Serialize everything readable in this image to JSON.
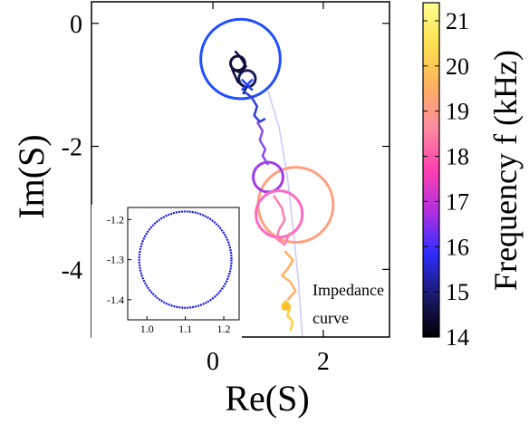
{
  "chart_data": [
    {
      "type": "line",
      "panel": "main",
      "xlabel": "Re(S)",
      "ylabel": "Im(S)",
      "xlim": [
        -2.2,
        3.2
      ],
      "ylim": [
        -5.1,
        0.35
      ],
      "xticks": [
        0,
        2
      ],
      "yticks": [
        0,
        -2,
        -4
      ],
      "xtick_labels": [
        "0",
        "2"
      ],
      "ytick_labels": [
        "0",
        "-2",
        "-4"
      ],
      "annotation": [
        "Impedance",
        "curve"
      ],
      "colorbar": {
        "label": "Frequency f (kHz)",
        "min": 14,
        "max": 21.4,
        "ticks": [
          14,
          15,
          16,
          17,
          18,
          19,
          20,
          21
        ],
        "colormap": [
          "#000000",
          "#1a1a6e",
          "#2d2dff",
          "#b030e0",
          "#ff40b0",
          "#ff8aa0",
          "#ffb060",
          "#ffe050",
          "#ffff90"
        ]
      },
      "impedance_curve": {
        "color": "#c8c8ff",
        "x": [
          1.0,
          1.2,
          1.35,
          1.45,
          1.55,
          1.62
        ],
        "y": [
          -1.1,
          -1.7,
          -2.5,
          -3.3,
          -4.2,
          -5.1
        ]
      },
      "circles": [
        {
          "cx": 0.5,
          "cy": -0.58,
          "r": 0.72,
          "color": "#1f4fff",
          "frequency": 15.4
        },
        {
          "cx": 1.5,
          "cy": -2.95,
          "r": 0.68,
          "color": "#ffa080",
          "frequency": 19.3
        },
        {
          "cx": 1.0,
          "cy": -2.5,
          "r": 0.27,
          "color": "#a03ce8",
          "frequency": 17.2
        },
        {
          "cx": 1.2,
          "cy": -3.1,
          "r": 0.42,
          "color": "#ff6ac0",
          "frequency": 18.2
        },
        {
          "cx": 0.45,
          "cy": -0.65,
          "r": 0.13,
          "color": "#0f0f3a",
          "frequency": 14.2
        },
        {
          "cx": 0.62,
          "cy": -0.9,
          "r": 0.15,
          "color": "#1a1a5a",
          "frequency": 14.6
        }
      ],
      "traces": [
        {
          "color": "#101040",
          "frequency": 14.3,
          "x": [
            0.4,
            0.5,
            0.6,
            0.5,
            0.35,
            0.45,
            0.6,
            0.55
          ],
          "y": [
            -0.45,
            -0.55,
            -0.7,
            -0.8,
            -0.75,
            -0.95,
            -1.05,
            -1.15
          ]
        },
        {
          "color": "#2e3cd0",
          "frequency": 15.8,
          "x": [
            0.55,
            0.7,
            0.8,
            0.75,
            0.85,
            0.95
          ],
          "y": [
            -1.1,
            -1.2,
            -1.35,
            -1.5,
            -1.6,
            -1.55
          ]
        },
        {
          "color": "#8a4ce8",
          "frequency": 16.7,
          "x": [
            0.8,
            0.9,
            0.85,
            0.95,
            0.9,
            1.0
          ],
          "y": [
            -1.6,
            -1.75,
            -1.9,
            -2.05,
            -2.15,
            -2.3
          ]
        },
        {
          "color": "#ff7fb0",
          "frequency": 18.6,
          "x": [
            1.1,
            1.25,
            1.3,
            1.2,
            1.15,
            1.3,
            1.4
          ],
          "y": [
            -2.8,
            -3.0,
            -3.2,
            -3.35,
            -3.5,
            -3.6,
            -3.4
          ]
        },
        {
          "color": "#ffb060",
          "frequency": 19.8,
          "x": [
            1.3,
            1.45,
            1.35,
            1.25,
            1.4,
            1.5,
            1.35
          ],
          "y": [
            -3.7,
            -3.85,
            -4.0,
            -4.1,
            -4.2,
            -4.35,
            -4.5
          ]
        },
        {
          "color": "#ffd040",
          "frequency": 20.6,
          "x": [
            1.3,
            1.4,
            1.35,
            1.45,
            1.4
          ],
          "y": [
            -4.5,
            -4.6,
            -4.75,
            -4.85,
            -5.0
          ]
        }
      ],
      "markers": [
        {
          "x": 0.62,
          "y": -1.0,
          "color": "#2040ff",
          "symbol": "x"
        },
        {
          "x": 1.32,
          "y": -4.6,
          "color": "#ffc030",
          "symbol": "dot"
        }
      ]
    },
    {
      "type": "scatter",
      "panel": "inset",
      "color": "#1414e0",
      "xlim": [
        0.95,
        1.24
      ],
      "ylim": [
        -1.45,
        -1.17
      ],
      "xticks": [
        1.0,
        1.1,
        1.2
      ],
      "yticks": [
        -1.2,
        -1.3,
        -1.4
      ],
      "xtick_labels": [
        "1.0",
        "1.1",
        "1.2"
      ],
      "ytick_labels": [
        "-1.2",
        "-1.3",
        "-1.4"
      ],
      "circle": {
        "cx": 1.1,
        "cy": -1.3,
        "r": 0.12
      }
    }
  ]
}
